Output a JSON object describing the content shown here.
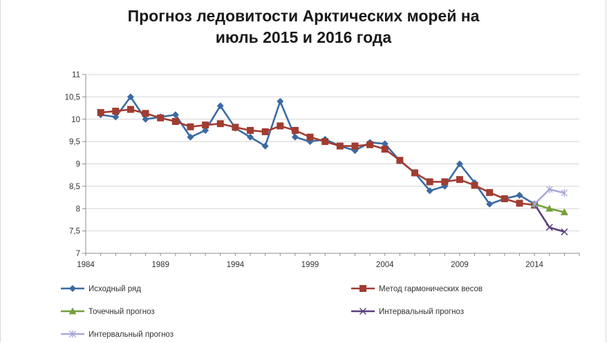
{
  "chart_data": {
    "type": "line",
    "title_lines": [
      "Прогноз ледовитости Арктических морей на",
      "июль 2015 и 2016 года"
    ],
    "xlabel": "",
    "ylabel": "",
    "xlim": [
      1984,
      2017
    ],
    "ylim": [
      7,
      11
    ],
    "x_ticks": [
      1984,
      1989,
      1994,
      1999,
      2004,
      2009,
      2014
    ],
    "y_ticks": [
      {
        "value": 7,
        "label": "7"
      },
      {
        "value": 7.5,
        "label": "7,5"
      },
      {
        "value": 8,
        "label": "8"
      },
      {
        "value": 8.5,
        "label": "8,5"
      },
      {
        "value": 9,
        "label": "9"
      },
      {
        "value": 9.5,
        "label": "9,5"
      },
      {
        "value": 10,
        "label": "10"
      },
      {
        "value": 10.5,
        "label": "10,5"
      },
      {
        "value": 11,
        "label": "11"
      }
    ],
    "grid": {
      "horizontal": true,
      "vertical": false
    },
    "legend_position": "bottom",
    "series": [
      {
        "name": "Исходный ряд",
        "color": "#3a6aa3",
        "marker": "diamond",
        "x": [
          1985,
          1986,
          1987,
          1988,
          1989,
          1990,
          1991,
          1992,
          1993,
          1994,
          1995,
          1996,
          1997,
          1998,
          1999,
          2000,
          2001,
          2002,
          2003,
          2004,
          2005,
          2006,
          2007,
          2008,
          2009,
          2010,
          2011,
          2012,
          2013,
          2014
        ],
        "y": [
          10.1,
          10.05,
          10.5,
          10.0,
          10.05,
          10.1,
          9.6,
          9.75,
          10.3,
          9.8,
          9.6,
          9.4,
          10.4,
          9.6,
          9.5,
          9.55,
          9.4,
          9.3,
          9.48,
          9.45,
          9.07,
          8.8,
          8.4,
          8.5,
          9.0,
          8.58,
          8.1,
          8.22,
          8.3,
          8.1
        ]
      },
      {
        "name": "Метод гармонических весов",
        "color": "#a13c31",
        "marker": "square",
        "x": [
          1985,
          1986,
          1987,
          1988,
          1989,
          1990,
          1991,
          1992,
          1993,
          1994,
          1995,
          1996,
          1997,
          1998,
          1999,
          2000,
          2001,
          2002,
          2003,
          2004,
          2005,
          2006,
          2007,
          2008,
          2009,
          2010,
          2011,
          2012,
          2013,
          2014
        ],
        "y": [
          10.15,
          10.18,
          10.22,
          10.13,
          10.03,
          9.95,
          9.83,
          9.87,
          9.9,
          9.82,
          9.75,
          9.72,
          9.85,
          9.75,
          9.6,
          9.5,
          9.4,
          9.4,
          9.43,
          9.33,
          9.08,
          8.8,
          8.6,
          8.6,
          8.65,
          8.52,
          8.36,
          8.22,
          8.12,
          8.08
        ]
      },
      {
        "name": "Точечный прогноз",
        "color": "#76a03b",
        "marker": "triangle",
        "x": [
          2014,
          2015,
          2016
        ],
        "y": [
          8.1,
          8.0,
          7.92
        ]
      },
      {
        "name": "Интервальный прогноз",
        "color": "#5a3f7d",
        "marker": "x",
        "x": [
          2014,
          2015,
          2016
        ],
        "y": [
          8.1,
          7.58,
          7.48
        ]
      },
      {
        "name": "Интервальный прогноз",
        "color": "#a7a8d9",
        "marker": "star",
        "x": [
          2014,
          2015,
          2016
        ],
        "y": [
          8.1,
          8.43,
          8.35
        ]
      }
    ]
  }
}
